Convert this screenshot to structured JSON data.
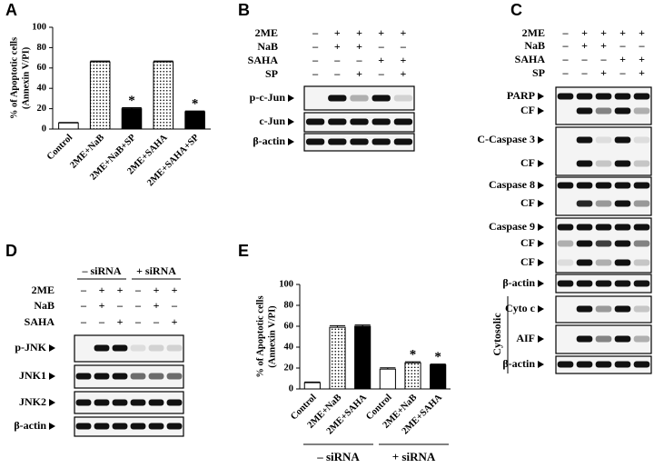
{
  "chart_data": [
    {
      "type": "bar",
      "panel": "A",
      "ylabel": [
        "% of Apoptotic cells",
        "(Annexin V/PI)"
      ],
      "categories": [
        "Control",
        "2ME+NaB",
        "2ME+NaB+SP",
        "2ME+SAHA",
        "2ME+SAHA+SP"
      ],
      "values": [
        6,
        66,
        20,
        66,
        17
      ],
      "errors": [
        0.5,
        0.8,
        1,
        0.8,
        0.8
      ],
      "fills": [
        "white",
        "dots",
        "black",
        "dots",
        "black"
      ],
      "significance": [
        null,
        null,
        "*",
        null,
        "*"
      ],
      "ylim": [
        0,
        100
      ],
      "yticks": [
        0,
        20,
        40,
        60,
        80,
        100
      ]
    },
    {
      "type": "bar",
      "panel": "E",
      "ylabel": [
        "% of Apoptotic cells",
        "(Annexin V/PI)"
      ],
      "categories": [
        "Control",
        "2ME+NaB",
        "2ME+SAHA",
        "Control",
        "2ME+NaB",
        "2ME+SAHA"
      ],
      "groups": [
        "– siRNA",
        "+ siRNA"
      ],
      "values": [
        6,
        59,
        60,
        19,
        25,
        23
      ],
      "errors": [
        0.6,
        1.5,
        1.2,
        1.2,
        1,
        0.8
      ],
      "fills": [
        "white",
        "dots",
        "black",
        "white",
        "dots",
        "black"
      ],
      "significance": [
        null,
        null,
        null,
        null,
        "*",
        "*"
      ],
      "ylim": [
        0,
        100
      ],
      "yticks": [
        0,
        20,
        40,
        60,
        80,
        100
      ]
    }
  ],
  "blots": [
    {
      "panel": "B",
      "treatments": [
        {
          "name": "2ME",
          "lanes": [
            "–",
            "+",
            "+",
            "+",
            "+"
          ]
        },
        {
          "name": "NaB",
          "lanes": [
            "–",
            "+",
            "+",
            "–",
            "–"
          ]
        },
        {
          "name": "SAHA",
          "lanes": [
            "–",
            "–",
            "–",
            "+",
            "+"
          ]
        },
        {
          "name": "SP",
          "lanes": [
            "–",
            "–",
            "+",
            "–",
            "+"
          ]
        }
      ],
      "rows": [
        {
          "labels": [
            "p-c-Jun"
          ]
        },
        {
          "labels": [
            "c-Jun"
          ]
        },
        {
          "labels": [
            "β-actin"
          ]
        }
      ]
    },
    {
      "panel": "C",
      "treatments": [
        {
          "name": "2ME",
          "lanes": [
            "–",
            "+",
            "+",
            "+",
            "+"
          ]
        },
        {
          "name": "NaB",
          "lanes": [
            "–",
            "+",
            "+",
            "–",
            "–"
          ]
        },
        {
          "name": "SAHA",
          "lanes": [
            "–",
            "–",
            "–",
            "+",
            "+"
          ]
        },
        {
          "name": "SP",
          "lanes": [
            "–",
            "–",
            "+",
            "–",
            "+"
          ]
        }
      ],
      "rows": [
        {
          "labels": [
            "PARP",
            "CF"
          ]
        },
        {
          "labels": [
            "C-Caspase 3",
            "CF"
          ]
        },
        {
          "labels": [
            "Caspase 8",
            "CF"
          ]
        },
        {
          "labels": [
            "Caspase 9",
            "CF",
            "CF"
          ]
        },
        {
          "labels": [
            "β-actin"
          ]
        },
        {
          "labels": [
            "Cyto c"
          ]
        },
        {
          "labels": [
            "AIF"
          ]
        },
        {
          "labels": [
            "β-actin"
          ]
        }
      ],
      "section": "Cytosolic"
    },
    {
      "panel": "D",
      "groups": [
        "– siRNA",
        "+ siRNA"
      ],
      "treatments": [
        {
          "name": "2ME",
          "lanes": [
            "–",
            "+",
            "+",
            "–",
            "+",
            "+"
          ]
        },
        {
          "name": "NaB",
          "lanes": [
            "–",
            "+",
            "–",
            "–",
            "+",
            "–"
          ]
        },
        {
          "name": "SAHA",
          "lanes": [
            "–",
            "–",
            "+",
            "–",
            "–",
            "+"
          ]
        }
      ],
      "rows": [
        {
          "labels": [
            "p-JNK"
          ]
        },
        {
          "labels": [
            "JNK1"
          ]
        },
        {
          "labels": [
            "JNK2"
          ]
        },
        {
          "labels": [
            "β-actin"
          ]
        }
      ]
    }
  ]
}
